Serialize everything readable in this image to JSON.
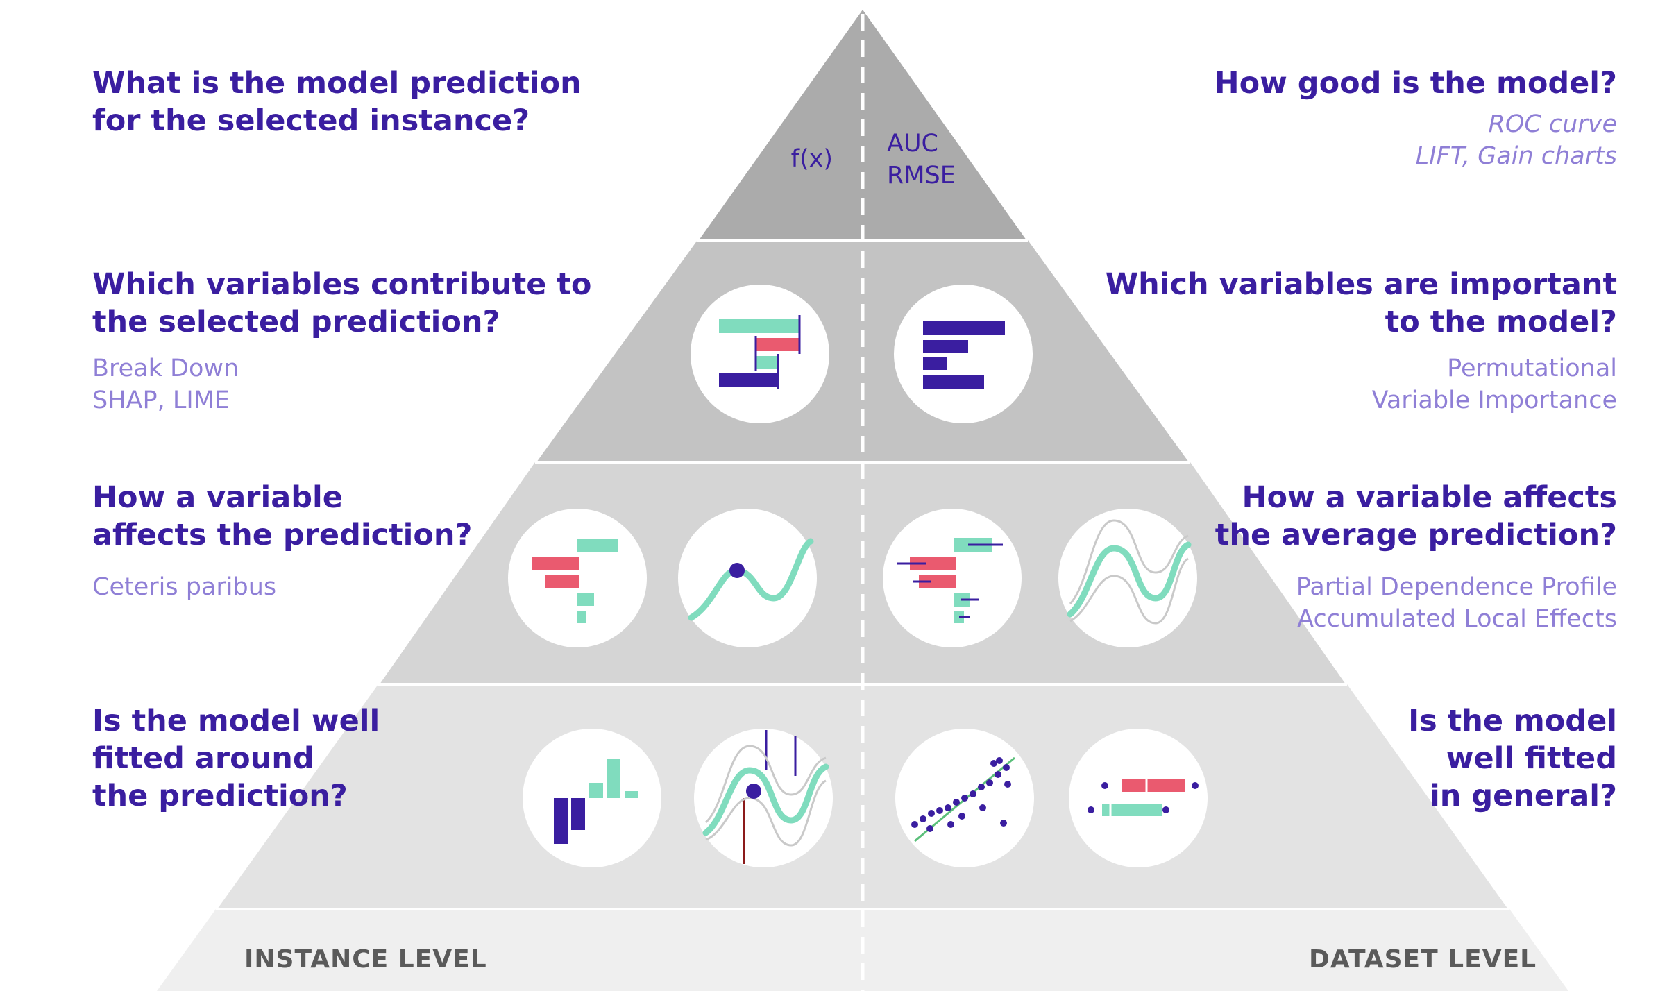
{
  "colors": {
    "question": "#3a1ea0",
    "method": "#8f7fd6",
    "level_label": "#5a5a5a",
    "tier1": "#ababab",
    "tier2": "#c3c3c3",
    "tier3": "#d5d5d5",
    "tier4": "#e3e3e3",
    "tier5": "#efefef",
    "teal": "#80dcbe",
    "red": "#ea5a6f",
    "navy": "#3a1ea0",
    "gray_line": "#c9c9c9",
    "dark_red": "#8b1a1a",
    "green_line": "#5bbf7a"
  },
  "apex": {
    "left_metric": "f(x)",
    "right_metrics": "AUC\nRMSE"
  },
  "left": {
    "level1": {
      "question": "What is the model prediction\nfor the selected instance?"
    },
    "level2": {
      "question": "Which variables contribute to\nthe selected prediction?",
      "methods": "Break Down\nSHAP, LIME"
    },
    "level3": {
      "question": "How a variable\naffects the prediction?",
      "methods": "Ceteris paribus"
    },
    "level4": {
      "question": "Is the model well\nfitted around\nthe prediction?"
    }
  },
  "right": {
    "level1": {
      "question": "How good is the model?",
      "methods": "ROC curve\nLIFT, Gain charts"
    },
    "level2": {
      "question": "Which variables are important\nto the model?",
      "methods": "Permutational\nVariable Importance"
    },
    "level3": {
      "question": "How a variable affects\nthe average prediction?",
      "methods": "Partial Dependence Profile\nAccumulated Local Effects"
    },
    "level4": {
      "question": "Is the model\nwell fitted\nin general?"
    }
  },
  "levels": {
    "instance": "INSTANCE LEVEL",
    "dataset": "DATASET LEVEL"
  },
  "icons": [
    "break-down-icon",
    "variable-importance-icon",
    "ceteris-paribus-bars-icon",
    "ceteris-paribus-profile-icon",
    "partial-dependence-bars-icon",
    "partial-dependence-profile-icon",
    "local-fit-histogram-icon",
    "local-fit-profile-icon",
    "residual-scatter-icon",
    "residual-boxplot-icon"
  ]
}
